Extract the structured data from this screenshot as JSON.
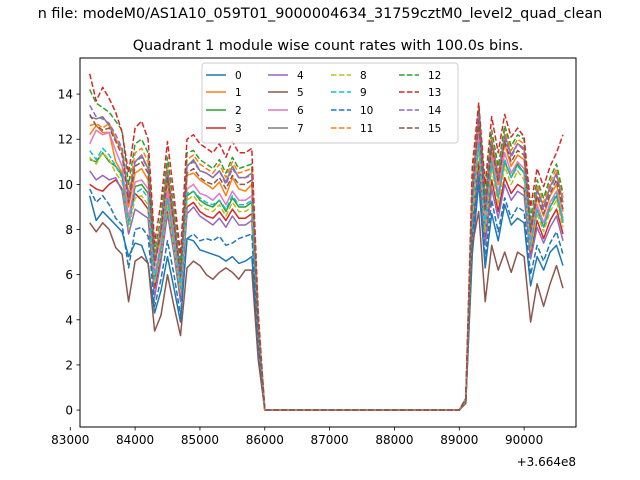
{
  "figure": {
    "suptitle": "n file: modeM0/AS1A10_059T01_9000004634_31759cztM0_level2_quad_clean",
    "offset_label": "+3.664e8"
  },
  "chart_data": {
    "type": "line",
    "title": "Quadrant 1 module wise count rates with 100.0s bins.",
    "xlabel": "",
    "ylabel": "",
    "xlim": [
      83150,
      90800
    ],
    "ylim": [
      -0.75,
      15.6
    ],
    "x_offset": 366400000,
    "xticks": [
      83000,
      84000,
      85000,
      86000,
      87000,
      88000,
      89000,
      90000
    ],
    "xtick_labels": [
      "83000",
      "84000",
      "85000",
      "86000",
      "87000",
      "88000",
      "89000",
      "90000"
    ],
    "yticks": [
      0,
      2,
      4,
      6,
      8,
      10,
      12,
      14
    ],
    "ytick_labels": [
      "0",
      "2",
      "4",
      "6",
      "8",
      "10",
      "12",
      "14"
    ],
    "grid": false,
    "legend_position": "top-center",
    "x": [
      83300,
      83400,
      83500,
      83600,
      83700,
      83800,
      83900,
      84000,
      84100,
      84200,
      84300,
      84400,
      84500,
      84600,
      84700,
      84800,
      84900,
      85000,
      85100,
      85200,
      85300,
      85400,
      85500,
      85600,
      85700,
      85800,
      85900,
      86000,
      89000,
      89100,
      89200,
      89300,
      89400,
      89500,
      89600,
      89700,
      89800,
      89900,
      90000,
      90100,
      90200,
      90300,
      90400,
      90500,
      90600
    ],
    "series": [
      {
        "name": "0",
        "color": "#1f77b4",
        "style": "solid",
        "values": [
          9.5,
          8.4,
          8.8,
          8.5,
          8.2,
          7.9,
          6.8,
          7.4,
          7.3,
          6.5,
          4.3,
          5.3,
          6.8,
          5.4,
          3.9,
          7.6,
          7.5,
          7.1,
          7.0,
          6.9,
          6.8,
          6.6,
          6.8,
          6.5,
          6.6,
          6.8,
          3.0,
          0,
          0,
          0.4,
          6.9,
          10.1,
          6.3,
          8.7,
          7.5,
          9.1,
          8.2,
          8.5,
          8.3,
          5.5,
          6.8,
          6.2,
          7.0,
          7.3,
          6.4
        ]
      },
      {
        "name": "1",
        "color": "#ff7f0e",
        "style": "solid",
        "values": [
          12.2,
          12.6,
          12.3,
          12.3,
          11.0,
          10.5,
          9.0,
          10.5,
          10.7,
          10.2,
          6.5,
          7.7,
          10.1,
          8.0,
          5.8,
          10.4,
          10.5,
          10.2,
          10.0,
          9.8,
          10.1,
          9.5,
          10.3,
          9.8,
          9.7,
          10.0,
          3.6,
          0,
          0,
          0.5,
          9.5,
          12.6,
          8.9,
          11.5,
          10.0,
          11.8,
          10.8,
          11.3,
          11.1,
          7.8,
          9.4,
          8.6,
          9.5,
          10.0,
          8.8
        ]
      },
      {
        "name": "2",
        "color": "#2ca02c",
        "style": "solid",
        "values": [
          11.1,
          11.0,
          11.4,
          11.0,
          10.8,
          10.4,
          8.4,
          9.9,
          10.0,
          9.6,
          5.8,
          7.2,
          9.4,
          7.5,
          5.4,
          9.5,
          9.7,
          9.3,
          9.1,
          9.0,
          9.3,
          8.8,
          9.4,
          9.0,
          9.0,
          9.2,
          3.3,
          0,
          0,
          0.5,
          8.6,
          11.8,
          8.1,
          10.9,
          9.4,
          11.0,
          10.3,
          10.9,
          10.5,
          7.3,
          8.9,
          8.1,
          9.0,
          9.5,
          8.3
        ]
      },
      {
        "name": "3",
        "color": "#d62728",
        "style": "solid",
        "values": [
          10.0,
          9.8,
          9.7,
          10.0,
          10.2,
          9.8,
          8.6,
          9.6,
          9.3,
          8.9,
          5.4,
          6.8,
          8.8,
          7.1,
          4.9,
          9.0,
          9.2,
          8.8,
          8.6,
          8.5,
          8.8,
          8.4,
          8.9,
          8.5,
          8.5,
          8.7,
          3.1,
          0,
          0,
          0.4,
          8.1,
          11.0,
          7.6,
          10.2,
          8.8,
          10.3,
          9.6,
          10.0,
          9.8,
          6.9,
          8.4,
          7.6,
          8.4,
          8.9,
          7.8
        ]
      },
      {
        "name": "4",
        "color": "#9467bd",
        "style": "solid",
        "values": [
          10.6,
          10.2,
          10.4,
          10.2,
          10.3,
          9.7,
          7.8,
          8.9,
          8.7,
          8.5,
          5.0,
          6.6,
          8.7,
          6.9,
          4.8,
          8.7,
          9.0,
          8.6,
          8.4,
          8.2,
          8.5,
          8.1,
          8.6,
          8.2,
          8.2,
          8.4,
          3.0,
          0,
          0,
          0.4,
          7.8,
          10.6,
          7.3,
          9.8,
          8.5,
          10.0,
          9.3,
          9.7,
          9.5,
          6.7,
          8.1,
          7.4,
          8.1,
          8.6,
          7.5
        ]
      },
      {
        "name": "5",
        "color": "#8c564b",
        "style": "solid",
        "values": [
          8.3,
          7.9,
          8.3,
          8.0,
          7.2,
          6.9,
          4.8,
          6.6,
          6.8,
          6.5,
          3.5,
          4.2,
          6.0,
          4.6,
          3.3,
          6.3,
          6.6,
          6.4,
          6.0,
          5.8,
          6.1,
          6.3,
          6.1,
          5.8,
          6.2,
          6.2,
          2.2,
          0,
          0,
          0.3,
          7.3,
          8.8,
          4.8,
          7.3,
          6.2,
          7.0,
          6.1,
          7.0,
          6.8,
          3.9,
          5.6,
          4.6,
          5.6,
          6.4,
          5.4
        ]
      },
      {
        "name": "6",
        "color": "#e377c2",
        "style": "solid",
        "values": [
          11.8,
          12.4,
          12.2,
          12.3,
          11.5,
          10.8,
          8.5,
          10.1,
          10.2,
          9.8,
          6.0,
          7.4,
          9.7,
          7.7,
          5.5,
          9.8,
          10.0,
          9.6,
          9.5,
          9.3,
          9.6,
          9.1,
          9.7,
          9.3,
          9.3,
          9.5,
          3.4,
          0,
          0,
          0.5,
          9.0,
          12.2,
          8.4,
          11.2,
          9.6,
          11.4,
          10.5,
          11.0,
          10.7,
          7.5,
          9.1,
          8.3,
          9.2,
          9.7,
          8.5
        ]
      },
      {
        "name": "7",
        "color": "#7f7f7f",
        "style": "solid",
        "values": [
          13.0,
          12.9,
          13.0,
          12.6,
          12.0,
          11.5,
          9.3,
          11.0,
          11.3,
          10.7,
          6.6,
          8.1,
          10.6,
          8.4,
          6.0,
          10.8,
          11.1,
          10.6,
          10.5,
          10.3,
          10.6,
          10.1,
          10.8,
          10.3,
          10.3,
          10.5,
          3.8,
          0,
          0,
          0.5,
          9.8,
          13.1,
          9.1,
          12.0,
          10.4,
          12.2,
          11.3,
          11.8,
          11.6,
          8.1,
          9.8,
          9.0,
          9.9,
          10.5,
          9.2
        ]
      },
      {
        "name": "8",
        "color": "#bcbd22",
        "style": "dashed",
        "values": [
          11.2,
          10.9,
          11.4,
          11.1,
          10.5,
          10.1,
          8.0,
          9.4,
          9.5,
          9.1,
          5.6,
          7.0,
          9.1,
          7.2,
          5.2,
          9.3,
          9.5,
          9.1,
          8.9,
          8.8,
          9.1,
          8.6,
          9.2,
          8.8,
          8.8,
          9.0,
          3.2,
          0,
          0,
          0.4,
          8.5,
          11.5,
          7.9,
          10.7,
          9.1,
          10.8,
          10.0,
          10.6,
          10.2,
          7.1,
          8.7,
          7.9,
          8.8,
          9.3,
          8.1
        ]
      },
      {
        "name": "9",
        "color": "#17becf",
        "style": "dashed",
        "values": [
          11.5,
          11.1,
          11.6,
          11.3,
          10.8,
          10.3,
          8.2,
          9.6,
          9.8,
          9.4,
          5.8,
          7.2,
          9.4,
          7.5,
          5.4,
          9.6,
          9.7,
          9.4,
          9.2,
          9.1,
          9.3,
          8.9,
          9.5,
          9.1,
          9.1,
          9.3,
          3.3,
          0,
          0,
          0.5,
          8.8,
          11.8,
          8.2,
          11.0,
          9.4,
          11.1,
          10.3,
          10.8,
          10.5,
          7.3,
          8.9,
          8.1,
          9.0,
          9.6,
          8.4
        ]
      },
      {
        "name": "10",
        "color": "#1f77b4",
        "style": "dashed",
        "values": [
          9.8,
          9.2,
          9.5,
          9.1,
          8.5,
          8.2,
          6.3,
          8.0,
          8.1,
          7.7,
          4.6,
          5.8,
          7.5,
          6.0,
          4.2,
          7.6,
          7.8,
          7.5,
          7.6,
          7.5,
          7.7,
          7.3,
          7.4,
          7.6,
          7.7,
          7.8,
          2.8,
          0,
          0,
          0.4,
          7.7,
          10.4,
          6.7,
          9.3,
          7.9,
          9.4,
          8.5,
          9.0,
          8.8,
          6.0,
          7.3,
          6.6,
          7.4,
          7.9,
          6.9
        ]
      },
      {
        "name": "11",
        "color": "#ff7f0e",
        "style": "dashed",
        "values": [
          12.6,
          12.7,
          12.5,
          12.7,
          12.0,
          11.5,
          9.6,
          11.4,
          11.6,
          11.0,
          6.8,
          8.3,
          10.9,
          8.6,
          6.2,
          11.1,
          11.3,
          10.9,
          10.7,
          10.5,
          10.9,
          10.3,
          11.0,
          10.5,
          10.6,
          10.7,
          3.9,
          0,
          0,
          0.5,
          10.0,
          13.3,
          9.3,
          12.1,
          10.6,
          12.4,
          11.5,
          12.0,
          11.8,
          8.3,
          10.0,
          9.2,
          10.1,
          10.7,
          9.4
        ]
      },
      {
        "name": "12",
        "color": "#2ca02c",
        "style": "dashed",
        "values": [
          14.2,
          13.6,
          13.4,
          13.2,
          12.8,
          12.4,
          10.0,
          11.8,
          12.0,
          11.4,
          7.0,
          8.6,
          11.2,
          8.9,
          6.4,
          11.4,
          11.5,
          11.1,
          10.9,
          10.7,
          11.1,
          10.5,
          11.2,
          10.7,
          10.8,
          10.9,
          4.0,
          0,
          0,
          0.5,
          10.2,
          13.5,
          9.5,
          12.4,
          10.8,
          12.6,
          11.7,
          12.2,
          12.0,
          8.5,
          10.2,
          9.4,
          10.3,
          10.9,
          9.6
        ]
      },
      {
        "name": "13",
        "color": "#d62728",
        "style": "dashed",
        "values": [
          14.9,
          13.7,
          14.3,
          13.8,
          13.2,
          12.3,
          10.5,
          12.5,
          12.8,
          12.0,
          7.4,
          9.2,
          11.9,
          9.5,
          6.9,
          12.0,
          12.2,
          11.8,
          11.6,
          11.4,
          11.8,
          11.2,
          11.9,
          11.4,
          11.4,
          11.6,
          4.3,
          0,
          0,
          0.5,
          10.8,
          13.6,
          10.0,
          13.0,
          11.4,
          13.1,
          12.1,
          12.5,
          12.1,
          9.0,
          10.7,
          9.9,
          10.8,
          11.4,
          12.2
        ]
      },
      {
        "name": "14",
        "color": "#9467bd",
        "style": "dashed",
        "values": [
          13.5,
          13.0,
          12.9,
          12.7,
          12.2,
          11.6,
          9.5,
          11.0,
          11.2,
          10.7,
          6.6,
          8.1,
          10.6,
          8.4,
          6.0,
          10.8,
          11.0,
          10.6,
          10.5,
          10.3,
          10.6,
          10.0,
          10.7,
          10.3,
          10.3,
          10.4,
          3.8,
          0,
          0,
          0.5,
          9.7,
          13.1,
          9.0,
          11.9,
          10.3,
          12.1,
          11.2,
          11.8,
          11.5,
          8.1,
          9.7,
          8.9,
          9.8,
          10.4,
          9.1
        ]
      },
      {
        "name": "15",
        "color": "#8c564b",
        "style": "dashed",
        "values": [
          13.1,
          12.6,
          12.4,
          12.5,
          11.9,
          11.3,
          9.2,
          10.8,
          11.0,
          10.5,
          6.4,
          7.9,
          10.3,
          8.2,
          5.9,
          10.5,
          10.7,
          10.3,
          10.1,
          10.0,
          10.3,
          9.8,
          10.4,
          10.0,
          10.0,
          10.2,
          3.7,
          0,
          0,
          0.5,
          9.5,
          12.8,
          8.8,
          11.7,
          10.1,
          11.9,
          11.0,
          11.5,
          11.3,
          7.9,
          9.5,
          8.7,
          9.6,
          10.2,
          8.9
        ]
      }
    ]
  }
}
